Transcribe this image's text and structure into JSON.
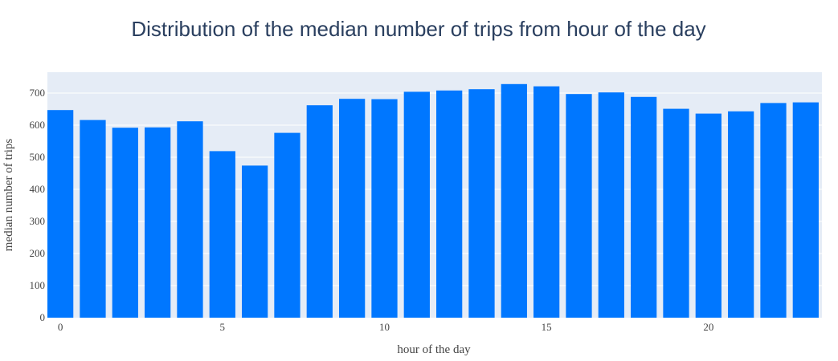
{
  "chart_data": {
    "type": "bar",
    "title": "Distribution of the median number of trips from hour of the day",
    "xlabel": "hour of the day",
    "ylabel": "median number of trips",
    "x": [
      0,
      1,
      2,
      3,
      4,
      5,
      6,
      7,
      8,
      9,
      10,
      11,
      12,
      13,
      14,
      15,
      16,
      17,
      18,
      19,
      20,
      21,
      22,
      23
    ],
    "values": [
      647,
      616,
      592,
      593,
      612,
      519,
      474,
      576,
      662,
      682,
      681,
      704,
      708,
      712,
      728,
      721,
      697,
      702,
      688,
      651,
      636,
      643,
      669,
      671
    ],
    "xlim": [
      -0.4,
      23.5
    ],
    "ylim": [
      0,
      765
    ],
    "xticks": [
      0,
      5,
      10,
      15,
      20
    ],
    "yticks": [
      0,
      100,
      200,
      300,
      400,
      500,
      600,
      700
    ],
    "grid": true,
    "colors": {
      "bar": "#0077ff",
      "plot_bg": "#e5ecf6",
      "grid": "#ffffff",
      "title": "#2a3f5f",
      "text": "#444444"
    }
  }
}
